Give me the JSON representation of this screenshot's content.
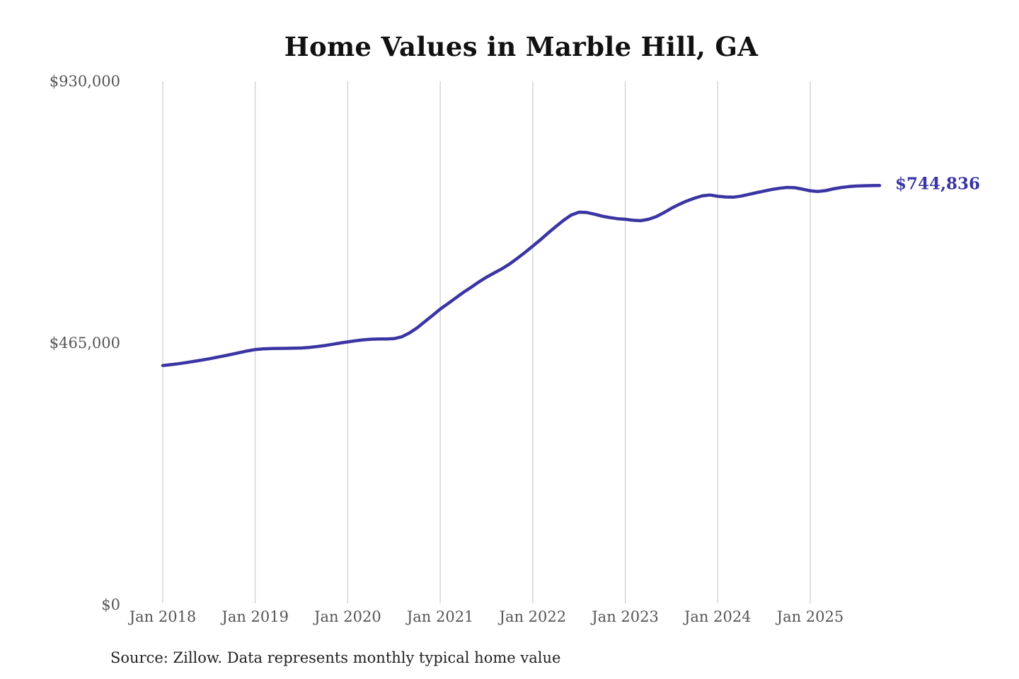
{
  "page": {
    "title": "Home Values in Marble Hill, GA",
    "source_note": "Source: Zillow. Data represents monthly typical home value",
    "latest_value_label": "$744,836"
  },
  "chart_data": {
    "type": "line",
    "title": "Home Values in Marble Hill, GA",
    "series_name": "Monthly typical home value",
    "x": [
      "2018-01",
      "2018-02",
      "2018-03",
      "2018-04",
      "2018-05",
      "2018-06",
      "2018-07",
      "2018-08",
      "2018-09",
      "2018-10",
      "2018-11",
      "2018-12",
      "2019-01",
      "2019-02",
      "2019-03",
      "2019-04",
      "2019-05",
      "2019-06",
      "2019-07",
      "2019-08",
      "2019-09",
      "2019-10",
      "2019-11",
      "2019-12",
      "2020-01",
      "2020-02",
      "2020-03",
      "2020-04",
      "2020-05",
      "2020-06",
      "2020-07",
      "2020-08",
      "2020-09",
      "2020-10",
      "2020-11",
      "2020-12",
      "2021-01",
      "2021-02",
      "2021-03",
      "2021-04",
      "2021-05",
      "2021-06",
      "2021-07",
      "2021-08",
      "2021-09",
      "2021-10",
      "2021-11",
      "2021-12",
      "2022-01",
      "2022-02",
      "2022-03",
      "2022-04",
      "2022-05",
      "2022-06",
      "2022-07",
      "2022-08",
      "2022-09",
      "2022-10",
      "2022-11",
      "2022-12",
      "2023-01",
      "2023-02",
      "2023-03",
      "2023-04",
      "2023-05",
      "2023-06",
      "2023-07",
      "2023-08",
      "2023-09",
      "2023-10",
      "2023-11",
      "2023-12",
      "2024-01",
      "2024-02",
      "2024-03",
      "2024-04",
      "2024-05",
      "2024-06",
      "2024-07",
      "2024-08",
      "2024-09",
      "2024-10",
      "2024-11",
      "2024-12",
      "2025-01",
      "2025-02",
      "2025-03",
      "2025-04",
      "2025-05",
      "2025-06",
      "2025-07",
      "2025-08",
      "2025-09",
      "2025-10"
    ],
    "values": [
      425000,
      426500,
      428200,
      430200,
      432300,
      434600,
      437000,
      439600,
      442300,
      445200,
      448100,
      451000,
      453500,
      454600,
      455200,
      455500,
      455600,
      455800,
      456200,
      457200,
      458700,
      460500,
      462700,
      465000,
      467000,
      469000,
      470700,
      471800,
      472200,
      472300,
      472800,
      476000,
      483000,
      492000,
      503000,
      514000,
      525300,
      535000,
      545000,
      555000,
      564000,
      573500,
      582000,
      589500,
      597000,
      605500,
      615500,
      626000,
      637200,
      648500,
      660500,
      672000,
      683000,
      692500,
      697500,
      697000,
      694000,
      690500,
      688000,
      686000,
      684900,
      683200,
      682400,
      684800,
      689500,
      696500,
      704500,
      711500,
      717500,
      722500,
      726500,
      728000,
      725800,
      724500,
      724200,
      726000,
      729000,
      732000,
      735000,
      737800,
      740000,
      741500,
      741000,
      738500,
      735500,
      734300,
      735800,
      739000,
      741300,
      743000,
      744000,
      744500,
      744700,
      744836
    ],
    "ylim": [
      0,
      930000
    ],
    "y_ticks": [
      {
        "value": 0,
        "label": "$0"
      },
      {
        "value": 465000,
        "label": "$465,000"
      },
      {
        "value": 930000,
        "label": "$930,000"
      }
    ],
    "x_ticks": [
      {
        "index": 0,
        "label": "Jan 2018"
      },
      {
        "index": 12,
        "label": "Jan 2019"
      },
      {
        "index": 24,
        "label": "Jan 2020"
      },
      {
        "index": 36,
        "label": "Jan 2021"
      },
      {
        "index": 48,
        "label": "Jan 2022"
      },
      {
        "index": 60,
        "label": "Jan 2023"
      },
      {
        "index": 72,
        "label": "Jan 2024"
      },
      {
        "index": 84,
        "label": "Jan 2025"
      }
    ],
    "grid": "vertical-only",
    "legend": "none",
    "end_label": "$744,836",
    "line_color": "#3a35a2",
    "grid_color": "#cccccc",
    "tick_label_color": "#555555",
    "title_color": "#111111",
    "source": "Source: Zillow. Data represents monthly typical home value"
  }
}
